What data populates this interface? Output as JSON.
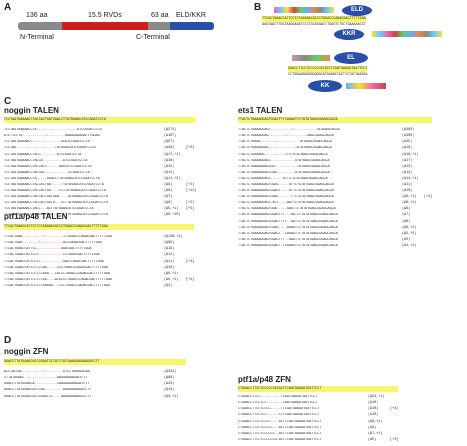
{
  "panelA": {
    "letter": "A",
    "label_nterm_aa": "136 aa",
    "label_rvds": "15.5 RVDs",
    "label_cterm_aa": "63 aa",
    "label_eld": "ELD/KKR",
    "label_n": "N-Terminal",
    "label_c": "C-Terminal",
    "colors": {
      "grey": "#8a8a8a",
      "red": "#cc2020",
      "darkgrey": "#555555",
      "blue": "#2a4fa8"
    }
  },
  "panelB": {
    "letter": "B",
    "eld": "ELD",
    "kkr": "KKR",
    "el": "EL",
    "kk": "KK",
    "seq1_top": "TTCACTGAACCATTCCTCTAGGGACGCCCTGGACCCAGACGACTTTTTGGA",
    "seq1_bot": "AAGTGACTTGGTAAGGAGATCCCTGCGGGACCTGGGTCTGCTGAAAAACCT",
    "seq2_top": "GGACCTTCCTCCCCCCGTACTTCGATGAGGATGATTCCT",
    "seq2_bot": "CCTGGAAGGAGGGGGGCATGAAGCTACTCCTACTAAGGA"
  },
  "panelC": {
    "letter": "C",
    "noggin": {
      "title": "noggin TALEN",
      "ref": "TCCTAGTGAAAACCTACCACTGGTGGACCTTATGGAGCATCCGGATCCTA",
      "rows": [
        {
          "s": "TCCTAGTGAAAACCTA--------------------ATCCGGATCCTA",
          "c": "(Δ274)",
          "e": ""
        },
        {
          "s": "GTCTTCCTG-----------//--------GGAGGAGAGACTTGGAG",
          "c": "(Δ197)",
          "e": ""
        },
        {
          "s": "TCCTAGTGAAAACC--------------GCATCCGGATCCTA",
          "c": "(Δ57)",
          "e": ""
        },
        {
          "s": "TCCTAG-------------------TATGGAGCATCCGGATCCTA",
          "c": "(Δ26)",
          "e": "[+2]"
        },
        {
          "s": "TCCTAGTGAAAACCTACC--------ATCCGGATCCTA",
          "c": "(Δ17,+1)",
          "e": ""
        },
        {
          "s": "TCCTAGTGAAAACCTACCA----------ATCCGGATCCTA",
          "c": "(Δ16)",
          "e": ""
        },
        {
          "s": "TCCTAGTGAAAACCTACCACT------GAGCATCCGGATCCTA",
          "c": "(Δ15)",
          "e": ""
        },
        {
          "s": "TCCTAGTGAAAACCTACCAC-----------TCCGGATCCTA",
          "c": "(Δ12)",
          "e": ""
        },
        {
          "s": "TCCTAGTGAAAACCTA-----GGACCTTATGGAGCATCCGGATCCTA",
          "c": "(Δ11,+2)",
          "e": ""
        },
        {
          "s": "TCCTAGTGAAAACCTACCACTGG-----TTATGGAGCATCCGGATCCTA",
          "c": "(Δ9)",
          "e": "[+2]"
        },
        {
          "s": "TCCTAGTGAAAACCTACCACTGG----CCTTATGGAGCATCCGGATCCTA",
          "c": "(Δ8)",
          "e": "[+11]"
        },
        {
          "s": "TCCTAGTGAAAACCTACCACTGGTGGA----TATGGAGCATCCGGATCCTA",
          "c": "(Δ7)",
          "e": ""
        },
        {
          "s": "TCCTAGTGAAAACCTACCACTGGTG---CCTTATGGAGCATCCGGATCCTA",
          "c": "(Δ6)",
          "e": "[+2]"
        },
        {
          "s": "TCCTAGTGAAAACCTACC---ACTTATGGAGCATCCGGATCCTA",
          "c": "(Δ5,+1)",
          "e": "[+5]"
        },
        {
          "s": "TCCTAGTGAAAACCTACCACTGGT-----CTTATGGAGCATCCGGATCCTA",
          "c": "(Δ5,+10)",
          "e": ""
        }
      ]
    },
    "ptf": {
      "title": "ptf1a/p48 TALEN",
      "ref": "TTCACTGAACCATTCCTCTAGGGACGCCCTGGACCCAGACGACTTTTTGGA",
      "rows": [
        {
          "s": "TTCACTGAA----------//--------TCTGGACCCAGACGACTTTTTGGA",
          "c": "(Δ126,+1)",
          "e": ""
        },
        {
          "s": "TTCACTGAA--------//----------ACCCAGACGACTTTTTGGA",
          "c": "(Δ99)",
          "e": ""
        },
        {
          "s": "TTCACTGAACCATTCC------------AGACGACTTTTTGGA",
          "c": "(Δ19)",
          "e": ""
        },
        {
          "s": "TTCACTGAACCATTCCT------------CCCAGACGACTTTTTGGA",
          "c": "(Δ12)",
          "e": ""
        },
        {
          "s": "TTCACTGAACCATTCCTC-----------GACCCAGACGACTTTTTGGA",
          "c": "(Δ11)",
          "e": "[+2]"
        },
        {
          "s": "TTCACTGAACCATTCCTCTAG-----CCCTGGACCCAGACGACTTTTTGGA",
          "c": "(Δ10)",
          "e": ""
        },
        {
          "s": "TTCACTGAACCATTCCTCTAGG---CGCCCTGGACCCAGACGACTTTTTGGA",
          "c": "(Δ6,+1)",
          "e": ""
        },
        {
          "s": "TTCACTGAACCATTCCTCTAG----ACGCCCTGGACCCAGACGACTTTTTGGA",
          "c": "(Δ5,+1)",
          "e": "[+2]"
        },
        {
          "s": "TTCACTGAACCATTCCTCTAGGGA---CCCTGGACCCAGACGACTTTTTGGA",
          "c": "(Δ4)",
          "e": ""
        }
      ]
    },
    "ets": {
      "title": "ets1 TALEN",
      "ref": "TTACTCTGAAAGGAGTGGACTTTCAGAGTTCTGTATGAGCGGAGCAGCA",
      "rows": [
        {
          "s": "TTACTCTGAAAGGAGT----------//-----------GCGGAGCAGCA",
          "c": "(Δ403)",
          "e": ""
        },
        {
          "s": "TTACTCTGAAAGGAG--------//---------GAGCGGAGCAGCA",
          "c": "(Δ400)",
          "e": ""
        },
        {
          "s": "TTACTCTGAAA-------------------TATGAGCGGAGCAGCA",
          "c": "(Δ25)",
          "e": ""
        },
        {
          "s": "TTACTCTGAAAGGAG-------------TGTATGAGCGGAGCAGCA",
          "c": "(Δ19)",
          "e": ""
        },
        {
          "s": "TTACTCTGAAAGG----------TTCTGTATGAGCGGAGCAGCA",
          "c": "(Δ18,+1)",
          "e": ""
        },
        {
          "s": "TTACTCTGAAAGGAGT------------GTATGAGCGGAGCAGCA",
          "c": "(Δ17)",
          "e": ""
        },
        {
          "s": "TTACTCTGAAAGGAGTGG-----------TATGAGCGGAGCAGCA",
          "c": "(Δ13)",
          "e": ""
        },
        {
          "s": "TTACTCTGAAAGGAGTGGA---------GTATGAGCGGAGCAGCA",
          "c": "(Δ12)",
          "e": ""
        },
        {
          "s": "TTACTCTGAAAGGAGT------GTTCTGTATGAGCGGAGCAGCA",
          "c": "(Δ12,+1)",
          "e": ""
        },
        {
          "s": "TTACTCTGAAAGGAGTGGAC-----GTTCTGTATGAGCGGAGCAGCA",
          "c": "(Δ11)",
          "e": ""
        },
        {
          "s": "TTACTCTGAAAGGAGTGGACT----GTTCTGTATGAGCGGAGCAGCA",
          "c": "(Δ10)",
          "e": ""
        },
        {
          "s": "TTACTCTGAAAGGAGTGGAC------TTCTGTATGAGCGGAGCAGCA",
          "c": "(Δ9,+1)",
          "e": "[+2]"
        },
        {
          "s": "TTACTCTGAAAGGAGT-ACT----AGTTCTGTATGAGCGGAGCAGCA",
          "c": "(Δ8,+1)",
          "e": ""
        },
        {
          "s": "TTACTCTGAAAGGAGTGGA-----GAGTTCTGTATGAGCGGAGCAGCA",
          "c": "(Δ8)",
          "e": ""
        },
        {
          "s": "TTACTCTGAAAGGAGTGGACTTT---AGTTCTGTATGAGCGGAGCAGCA",
          "c": "(Δ7)",
          "e": ""
        },
        {
          "s": "TTACTCTGAAAGGAGTGGACTTTC--AGTTCTGTATGAGCGGAGCAGCA",
          "c": "(Δ6)",
          "e": ""
        },
        {
          "s": "TTACTCTGAAAGGAGTGGAC----AGAGTTCTGTATGAGCGGAGCAGCA",
          "c": "(Δ6,+1)",
          "e": ""
        },
        {
          "s": "TTACTCTGAAAGGAGTGGACT--CAGAGTTCTGTATGAGCGGAGCAGCA",
          "c": "(Δ5,+2)",
          "e": ""
        },
        {
          "s": "TTACTCTGAAAGGAGTGGACTTT--GAGTTCTGTATGAGCGGAGCAGCA",
          "c": "(Δ5)",
          "e": ""
        },
        {
          "s": "TTACTCTGAAAGGAGTGGACT-TCAGAGTTCTGTATGAGCGGAGCAGCA",
          "c": "(Δ4,+1)",
          "e": ""
        }
      ]
    }
  },
  "panelD": {
    "letter": "D",
    "noggin": {
      "title": "noggin ZFN",
      "ref": "GGACCTTATGGAGCATCCGGATCCTATCTATCAAGGAGAAGGATCTT",
      "rows": [
        {
          "s": "ACCTACCAC----------//--------ATCCTAGGGACAA",
          "c": "(Δ332)",
          "e": ""
        },
        {
          "s": "CTTATGGAGC----------------AAGGAGAAGGATCTT",
          "c": "(Δ68)",
          "e": ""
        },
        {
          "s": "GGACCTTATGGAGCA-----------CAAGGAGAAGGATCTT",
          "c": "(Δ23)",
          "e": ""
        },
        {
          "s": "GGACCTTATGGAGCATCCGG---------AGGAGAAGGATCTT",
          "c": "(Δ14)",
          "e": ""
        },
        {
          "s": "GGACCTTATGGAGCATCCGGATCC----AAGGAGAAGGATCTT",
          "c": "(Δ4,+1)",
          "e": ""
        }
      ]
    },
    "ptf": {
      "title": "ptf1a/p48 ZFN",
      "ref": "CTGGACCTTCCTCCCCCCGTACTTCGATGAGGATGATTCCT",
      "rows": [
        {
          "s": "CTGGACCTTCC----------TCGATGAGGATGATTCCT",
          "c": "(Δ24,+1)",
          "e": ""
        },
        {
          "s": "CTGGACCTTCCTCC--------CGATGAGGATGATTCCT",
          "c": "(Δ16)",
          "e": ""
        },
        {
          "s": "CTGGACCTTCCTCCCC-----TTCGATGAGGATGATTCCT",
          "c": "(Δ10)",
          "e": "[+3]"
        },
        {
          "s": "CTGGACCTTCCTCC------CTTCGATGAGGATGATTCCT",
          "c": "(Δ10)",
          "e": ""
        },
        {
          "s": "CTGGACCTTCCTCCCC----ACTTCGATGAGGATGATTCCT",
          "c": "(Δ9,+1)",
          "e": ""
        },
        {
          "s": "CTGGACCTTCCTCCCCC---ACTTCGATGAGGATGATTCCT",
          "c": "(Δ9)",
          "e": ""
        },
        {
          "s": "CTGGACCTTCCTCCCCCC--ACTTCGATGAGGATGATTCCT",
          "c": "(Δ7,+1)",
          "e": ""
        },
        {
          "s": "CTGGACCTTCCTCCCCCCG-ACTTCGATGAGGATGATTCCT",
          "c": "(Δ5)",
          "e": "[+2]"
        }
      ]
    }
  }
}
